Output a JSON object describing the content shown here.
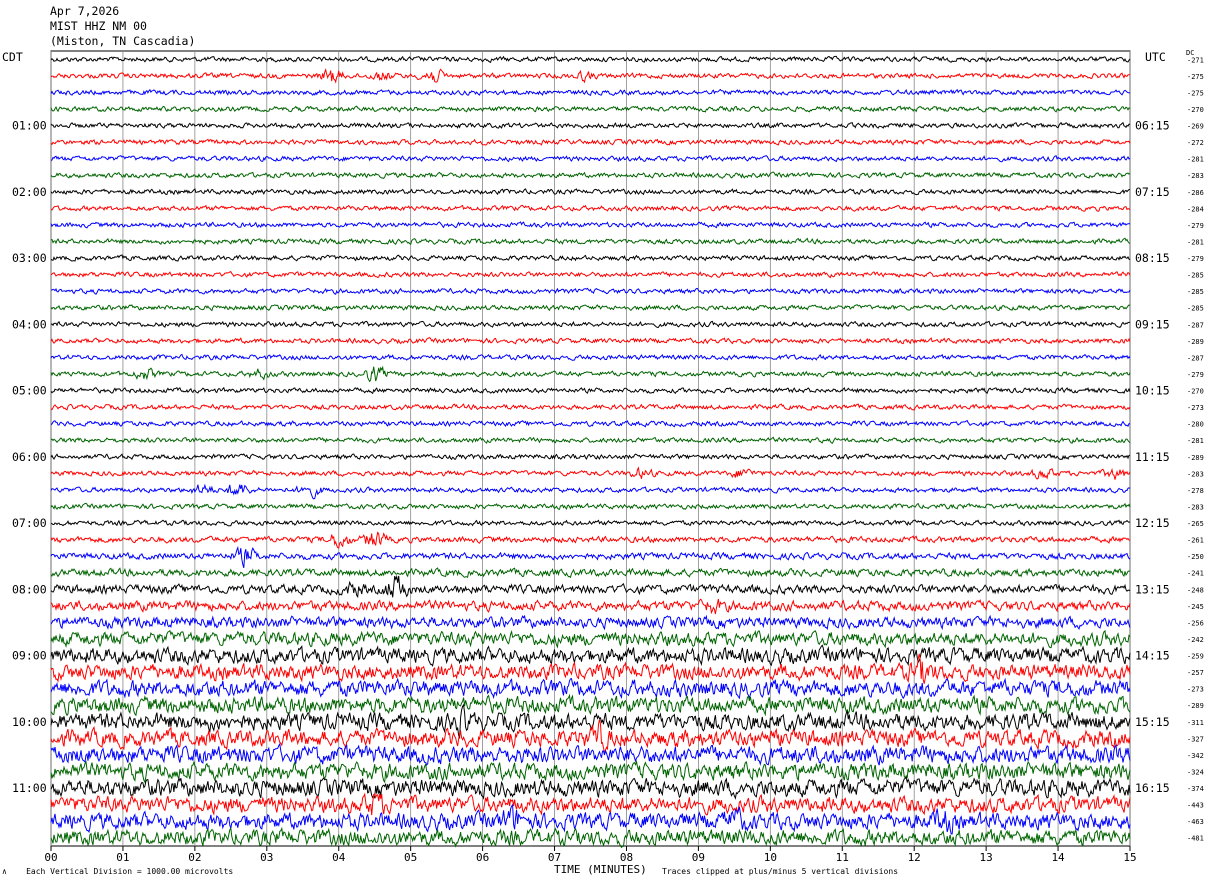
{
  "header": {
    "date": "Apr 7,2026",
    "station": "MIST HHZ NM 00",
    "location": "(Miston, TN Cascadia)"
  },
  "left_timezone": "CDT",
  "right_timezone": "UTC",
  "dc_label": "DC",
  "footer": {
    "scale": "Each Vertical Division = 1000.00 microvolts",
    "xlabel": "TIME (MINUTES)",
    "clip": "Traces clipped at plus/minus 5 vertical divisions",
    "corner_mark": "∧"
  },
  "colors": {
    "black": "#000000",
    "red": "#ff0000",
    "blue": "#0000ff",
    "green": "#006400",
    "grid": "#888888"
  },
  "chart_data": {
    "type": "line",
    "title": "MIST HHZ NM 00",
    "xlabel": "TIME (MINUTES)",
    "xlim": [
      0,
      15
    ],
    "x_ticks": [
      "00",
      "01",
      "02",
      "03",
      "04",
      "05",
      "06",
      "07",
      "08",
      "09",
      "10",
      "11",
      "12",
      "13",
      "14",
      "15"
    ],
    "trace_colors_cycle": [
      "black",
      "red",
      "blue",
      "green"
    ],
    "left_hour_labels": [
      "01:00",
      "02:00",
      "03:00",
      "04:00",
      "05:00",
      "06:00",
      "07:00",
      "08:00",
      "09:00",
      "10:00",
      "11:00"
    ],
    "right_hour_labels": [
      "06:15",
      "07:15",
      "08:15",
      "09:15",
      "10:15",
      "11:15",
      "12:15",
      "13:15",
      "14:15",
      "15:15",
      "16:15"
    ],
    "dc_offsets": [
      -271,
      -275,
      -275,
      -270,
      -269,
      -272,
      -281,
      -283,
      -286,
      -284,
      -279,
      -281,
      -279,
      -285,
      -285,
      -285,
      -287,
      -289,
      -287,
      -279,
      -270,
      -273,
      -280,
      -281,
      -289,
      -283,
      -278,
      -283,
      -265,
      -261,
      -250,
      -241,
      -248,
      -245,
      -256,
      -242,
      -259,
      -257,
      -273,
      -289,
      -311,
      -327,
      -342,
      -324,
      -374,
      -443,
      -463,
      -481
    ],
    "trace_amplitude_level": [
      1,
      1,
      1,
      1,
      1,
      1,
      1,
      1,
      1,
      1,
      1,
      1,
      1,
      1,
      1,
      1,
      1,
      1,
      1,
      1,
      1,
      1,
      1,
      1,
      1,
      1,
      1,
      1,
      1,
      1.2,
      1.3,
      1.5,
      1.8,
      2,
      2.3,
      2.8,
      3.2,
      3.2,
      3.4,
      3.4,
      3.5,
      3.5,
      3.6,
      3.5,
      3.6,
      3.3,
      3.4,
      3.3
    ],
    "events": [
      {
        "trace": 1,
        "minute": 3.9,
        "amp": 3
      },
      {
        "trace": 1,
        "minute": 5.3,
        "amp": 3
      },
      {
        "trace": 1,
        "minute": 4.6,
        "amp": 1.6
      },
      {
        "trace": 1,
        "minute": 7.4,
        "amp": 1.5
      },
      {
        "trace": 19,
        "minute": 4.5,
        "amp": 3
      },
      {
        "trace": 19,
        "minute": 1.3,
        "amp": 2
      },
      {
        "trace": 19,
        "minute": 2.9,
        "amp": 1.6
      },
      {
        "trace": 25,
        "minute": 8.2,
        "amp": 1.8
      },
      {
        "trace": 25,
        "minute": 9.6,
        "amp": 1.8
      },
      {
        "trace": 25,
        "minute": 13.8,
        "amp": 2
      },
      {
        "trace": 25,
        "minute": 14.8,
        "amp": 2
      },
      {
        "trace": 26,
        "minute": 2.6,
        "amp": 3
      },
      {
        "trace": 26,
        "minute": 3.6,
        "amp": 2.5
      },
      {
        "trace": 26,
        "minute": 2.1,
        "amp": 2
      },
      {
        "trace": 29,
        "minute": 4.0,
        "amp": 3
      },
      {
        "trace": 29,
        "minute": 4.5,
        "amp": 3.5
      },
      {
        "trace": 30,
        "minute": 2.7,
        "amp": 3.5
      },
      {
        "trace": 32,
        "minute": 4.8,
        "amp": 5
      },
      {
        "trace": 32,
        "minute": 4.2,
        "amp": 2
      },
      {
        "trace": 33,
        "minute": 9.2,
        "amp": 2
      },
      {
        "trace": 37,
        "minute": 12.1,
        "amp": 4
      },
      {
        "trace": 41,
        "minute": 7.6,
        "amp": 4
      },
      {
        "trace": 40,
        "minute": 5.7,
        "amp": 3
      },
      {
        "trace": 45,
        "minute": 4.5,
        "amp": 3
      },
      {
        "trace": 46,
        "minute": 6.4,
        "amp": 3.5
      },
      {
        "trace": 46,
        "minute": 9.5,
        "amp": 3
      },
      {
        "trace": 46,
        "minute": 12.4,
        "amp": 3
      }
    ]
  }
}
